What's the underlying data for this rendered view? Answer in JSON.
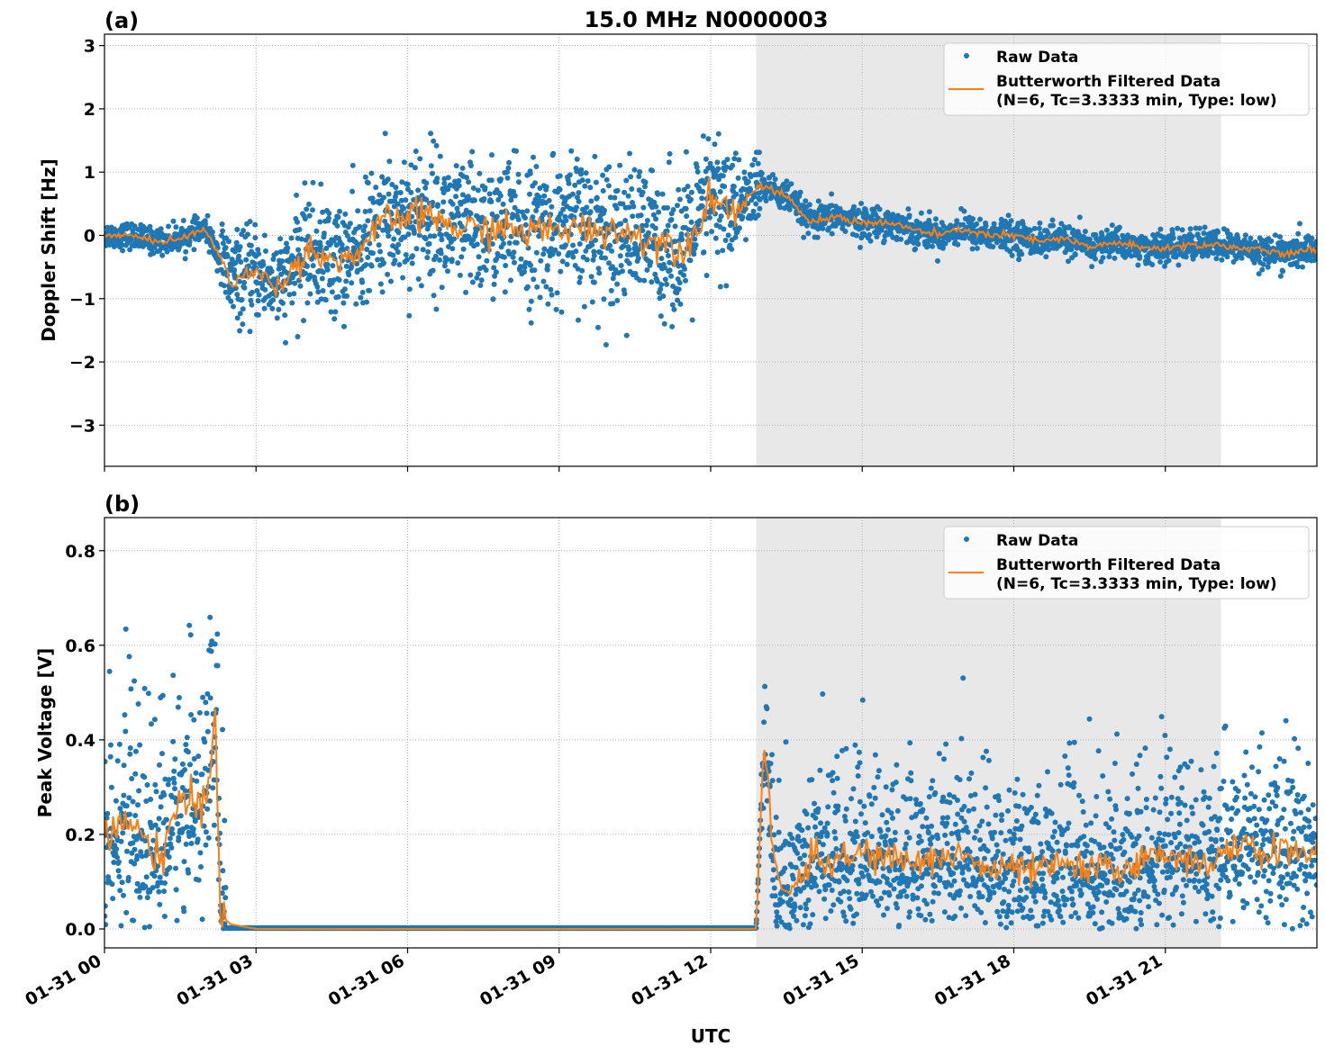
{
  "title": "15.0 MHz N0000003",
  "xlabel": "UTC",
  "x_tick_labels": [
    "01-31 00",
    "01-31 03",
    "01-31 06",
    "01-31 09",
    "01-31 12",
    "01-31 15",
    "01-31 18",
    "01-31 21"
  ],
  "colors": {
    "raw": "#1f77b4",
    "filtered": "#ff7f0e",
    "shade": "#e8e8e8"
  },
  "legend": {
    "raw": "Raw Data",
    "filtered_line1": "Butterworth Filtered Data",
    "filtered_line2": "(N=6, Tc=3.3333 min, Type: low)"
  },
  "chart_data": [
    {
      "type": "scatter",
      "panel_label": "(a)",
      "ylabel": "Doppler Shift [Hz]",
      "x_unit": "hours UTC on 01-31",
      "xlim": [
        0,
        24
      ],
      "ylim": [
        -3.65,
        3.18
      ],
      "y_ticks": [
        -3,
        -2,
        -1,
        0,
        1,
        2,
        3
      ],
      "grid": true,
      "legend_position": "top-right",
      "shaded_region": [
        12.9,
        22.1
      ],
      "series": [
        {
          "name": "Raw Data",
          "style": "points",
          "spread_note": "scatter around filtered line",
          "x": [
            0,
            2.3,
            3.8,
            5.5,
            12.5,
            13,
            24
          ],
          "spread": [
            0.1,
            0.35,
            0.45,
            0.55,
            0.3,
            0.12,
            0.12
          ]
        },
        {
          "name": "Butterworth Filtered Data",
          "style": "line",
          "x": [
            0,
            0.5,
            1,
            1.5,
            2,
            2.5,
            3,
            3.5,
            4,
            4.5,
            5,
            5.5,
            6,
            6.5,
            7,
            7.5,
            8,
            8.5,
            9,
            9.5,
            10,
            10.5,
            11,
            11.5,
            12,
            12.5,
            13,
            13.5,
            14,
            14.5,
            15,
            15.5,
            16,
            16.5,
            17,
            17.5,
            18,
            18.5,
            19,
            19.5,
            20,
            20.5,
            21,
            21.5,
            22,
            22.5,
            23,
            23.5,
            24
          ],
          "y": [
            0,
            0,
            -0.1,
            -0.05,
            0.1,
            -0.7,
            -0.6,
            -0.8,
            -0.2,
            -0.4,
            -0.3,
            0.2,
            0.3,
            0.3,
            0.1,
            0.1,
            0.1,
            0.05,
            0.1,
            0.1,
            0.1,
            0,
            -0.1,
            -0.2,
            0.6,
            0.4,
            0.8,
            0.6,
            0.2,
            0.3,
            0.2,
            0.2,
            0.1,
            0,
            0.1,
            0,
            0,
            -0.1,
            -0.05,
            -0.2,
            -0.1,
            -0.2,
            -0.2,
            -0.15,
            -0.15,
            -0.2,
            -0.25,
            -0.3,
            -0.2
          ]
        }
      ]
    },
    {
      "type": "scatter",
      "panel_label": "(b)",
      "ylabel": "Peak Voltage [V]",
      "x_unit": "hours UTC on 01-31",
      "xlim": [
        0,
        24
      ],
      "ylim": [
        -0.04,
        0.87
      ],
      "y_ticks": [
        0.0,
        0.2,
        0.4,
        0.6,
        0.8
      ],
      "grid": true,
      "legend_position": "top-right",
      "shaded_region": [
        12.9,
        22.1
      ],
      "series": [
        {
          "name": "Raw Data",
          "style": "points",
          "x": [
            0,
            2.3,
            2.4,
            12.9,
            13.0,
            24
          ],
          "spread": [
            0.1,
            0.1,
            0.002,
            0.002,
            0.07,
            0.07
          ]
        },
        {
          "name": "Butterworth Filtered Data",
          "style": "line",
          "x": [
            0,
            0.5,
            1,
            1.5,
            2,
            2.2,
            2.3,
            2.5,
            3,
            6,
            9,
            12,
            12.9,
            13.05,
            13.3,
            13.5,
            14,
            14.5,
            15,
            15.5,
            16,
            16.5,
            17,
            17.5,
            18,
            18.5,
            19,
            19.5,
            20,
            20.5,
            21,
            21.5,
            22,
            22.5,
            23,
            23.5,
            24
          ],
          "y": [
            0.2,
            0.22,
            0.15,
            0.25,
            0.28,
            0.45,
            0.03,
            0.01,
            0,
            0,
            0,
            0,
            0,
            0.4,
            0.1,
            0.07,
            0.15,
            0.14,
            0.16,
            0.15,
            0.14,
            0.15,
            0.16,
            0.12,
            0.13,
            0.12,
            0.14,
            0.12,
            0.13,
            0.14,
            0.16,
            0.15,
            0.14,
            0.18,
            0.16,
            0.17,
            0.15
          ]
        }
      ]
    }
  ]
}
